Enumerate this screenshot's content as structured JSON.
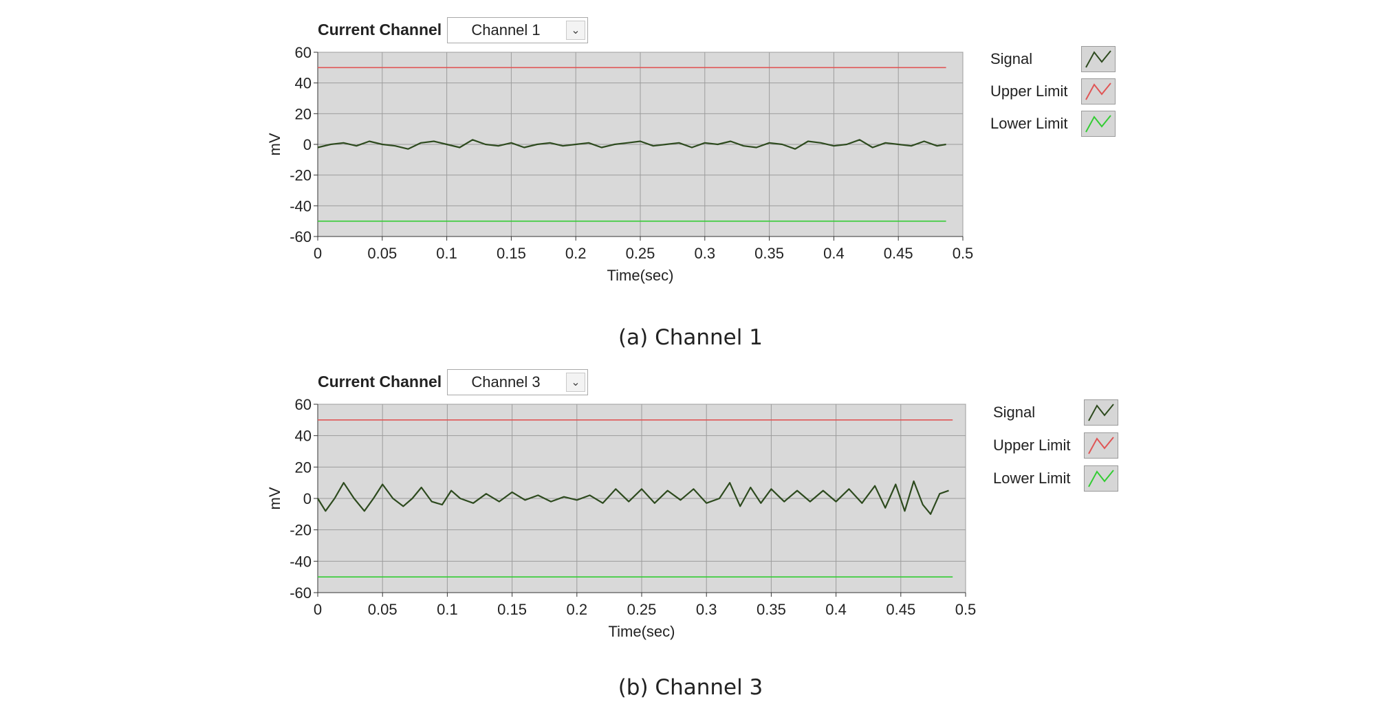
{
  "panels": [
    {
      "current_channel_label": "Current Channel",
      "selected_channel": "Channel 1",
      "caption": "(a) Channel 1",
      "legend": [
        {
          "label": "Signal",
          "color": "#2d4a1e"
        },
        {
          "label": "Upper Limit",
          "color": "#e05555"
        },
        {
          "label": "Lower Limit",
          "color": "#33cc33"
        }
      ]
    },
    {
      "current_channel_label": "Current Channel",
      "selected_channel": "Channel 3",
      "caption": "(b) Channel 3",
      "legend": [
        {
          "label": "Signal",
          "color": "#2d4a1e"
        },
        {
          "label": "Upper Limit",
          "color": "#e05555"
        },
        {
          "label": "Lower Limit",
          "color": "#33cc33"
        }
      ]
    }
  ],
  "chart_data": [
    {
      "type": "line",
      "xlabel": "Time(sec)",
      "ylabel": "mV",
      "xlim": [
        0,
        0.5
      ],
      "ylim": [
        -60,
        60
      ],
      "xticks": [
        "0",
        "0.05",
        "0.1",
        "0.15",
        "0.2",
        "0.25",
        "0.3",
        "0.35",
        "0.4",
        "0.45",
        "0.5"
      ],
      "yticks": [
        "60",
        "40",
        "20",
        "0",
        "-20",
        "-40",
        "-60"
      ],
      "grid": true,
      "plot_background": "#d9d9d9",
      "series": [
        {
          "name": "Signal",
          "color": "#2d4a1e",
          "x": [
            0,
            0.01,
            0.02,
            0.03,
            0.04,
            0.05,
            0.06,
            0.07,
            0.08,
            0.09,
            0.1,
            0.11,
            0.12,
            0.13,
            0.14,
            0.15,
            0.16,
            0.17,
            0.18,
            0.19,
            0.2,
            0.21,
            0.22,
            0.23,
            0.24,
            0.25,
            0.26,
            0.27,
            0.28,
            0.29,
            0.3,
            0.31,
            0.32,
            0.33,
            0.34,
            0.35,
            0.36,
            0.37,
            0.38,
            0.39,
            0.4,
            0.41,
            0.42,
            0.43,
            0.44,
            0.45,
            0.46,
            0.47,
            0.48,
            0.487
          ],
          "y": [
            -2,
            0,
            1,
            -1,
            2,
            0,
            -1,
            -3,
            1,
            2,
            0,
            -2,
            3,
            0,
            -1,
            1,
            -2,
            0,
            1,
            -1,
            0,
            1,
            -2,
            0,
            1,
            2,
            -1,
            0,
            1,
            -2,
            1,
            0,
            2,
            -1,
            -2,
            1,
            0,
            -3,
            2,
            1,
            -1,
            0,
            3,
            -2,
            1,
            0,
            -1,
            2,
            -1,
            0
          ]
        },
        {
          "name": "Upper Limit",
          "color": "#e05555",
          "x": [
            0,
            0.487
          ],
          "y": [
            50,
            50
          ]
        },
        {
          "name": "Lower Limit",
          "color": "#33cc33",
          "x": [
            0,
            0.487
          ],
          "y": [
            -50,
            -50
          ]
        }
      ]
    },
    {
      "type": "line",
      "xlabel": "Time(sec)",
      "ylabel": "mV",
      "xlim": [
        0,
        0.5
      ],
      "ylim": [
        -60,
        60
      ],
      "xticks": [
        "0",
        "0.05",
        "0.1",
        "0.15",
        "0.2",
        "0.25",
        "0.3",
        "0.35",
        "0.4",
        "0.45",
        "0.5"
      ],
      "yticks": [
        "60",
        "40",
        "20",
        "0",
        "-20",
        "-40",
        "-60"
      ],
      "grid": true,
      "plot_background": "#d9d9d9",
      "series": [
        {
          "name": "Signal",
          "color": "#2d4a1e",
          "x": [
            0,
            0.006,
            0.013,
            0.02,
            0.028,
            0.036,
            0.043,
            0.05,
            0.058,
            0.066,
            0.073,
            0.08,
            0.088,
            0.096,
            0.103,
            0.11,
            0.12,
            0.13,
            0.14,
            0.15,
            0.16,
            0.17,
            0.18,
            0.19,
            0.2,
            0.21,
            0.22,
            0.23,
            0.24,
            0.25,
            0.26,
            0.27,
            0.28,
            0.29,
            0.3,
            0.31,
            0.318,
            0.326,
            0.334,
            0.342,
            0.35,
            0.36,
            0.37,
            0.38,
            0.39,
            0.4,
            0.41,
            0.42,
            0.43,
            0.438,
            0.446,
            0.453,
            0.46,
            0.467,
            0.473,
            0.48,
            0.487
          ],
          "y": [
            0,
            -8,
            0,
            10,
            0,
            -8,
            0,
            9,
            0,
            -5,
            0,
            7,
            -2,
            -4,
            5,
            0,
            -3,
            3,
            -2,
            4,
            -1,
            2,
            -2,
            1,
            -1,
            2,
            -3,
            6,
            -2,
            6,
            -3,
            5,
            -1,
            6,
            -3,
            0,
            10,
            -5,
            7,
            -3,
            6,
            -2,
            5,
            -2,
            5,
            -2,
            6,
            -3,
            8,
            -6,
            9,
            -8,
            11,
            -4,
            -10,
            3,
            5
          ]
        },
        {
          "name": "Upper Limit",
          "color": "#e05555",
          "x": [
            0,
            0.49
          ],
          "y": [
            50,
            50
          ]
        },
        {
          "name": "Lower Limit",
          "color": "#33cc33",
          "x": [
            0,
            0.49
          ],
          "y": [
            -50,
            -50
          ]
        }
      ]
    }
  ]
}
